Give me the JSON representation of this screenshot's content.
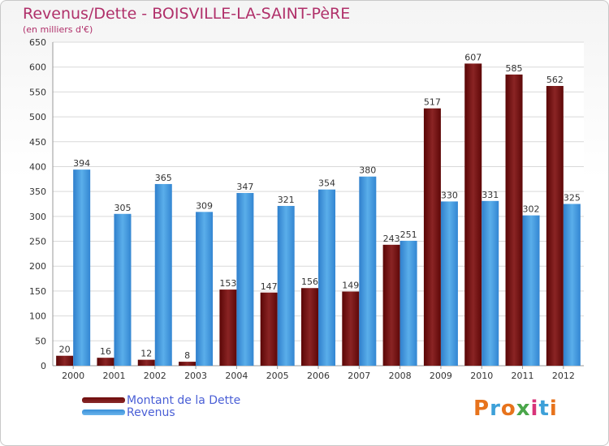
{
  "header": {
    "title": "Revenus/Dette - BOISVILLE-LA-SAINT-PèRE",
    "subtitle": "(en milliers d'€)"
  },
  "colors": {
    "dette": "#6e0a0a",
    "revenus": "#3a8fd8",
    "title": "#b0306a",
    "legend_text": "#4a5fd6",
    "grid": "#d9d9d9"
  },
  "legend": [
    {
      "label": "Montant de la Dette",
      "color": "#6e0a0a"
    },
    {
      "label": "Revenus",
      "color": "#3a8fd8"
    }
  ],
  "logo": {
    "text": "Proxiti",
    "letter_colors": [
      "#e7731c",
      "#3da0d8",
      "#e7731c",
      "#4aa64a",
      "#d8347a",
      "#3da0d8",
      "#e7731c"
    ]
  },
  "chart_data": {
    "type": "bar",
    "categories": [
      "2000",
      "2001",
      "2002",
      "2003",
      "2004",
      "2005",
      "2006",
      "2007",
      "2008",
      "2009",
      "2010",
      "2011",
      "2012"
    ],
    "series": [
      {
        "name": "Montant de la Dette",
        "values": [
          20,
          16,
          12,
          8,
          153,
          147,
          156,
          149,
          243,
          517,
          607,
          585,
          562
        ]
      },
      {
        "name": "Revenus",
        "values": [
          394,
          305,
          365,
          309,
          347,
          321,
          354,
          380,
          251,
          330,
          331,
          302,
          325
        ]
      }
    ],
    "ylim": [
      0,
      650
    ],
    "yticks": [
      0,
      50,
      100,
      150,
      200,
      250,
      300,
      350,
      400,
      450,
      500,
      550,
      600,
      650
    ],
    "grid": true,
    "legend_position": "bottom-left"
  }
}
